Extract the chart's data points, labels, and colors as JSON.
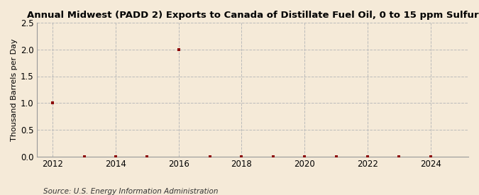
{
  "title": "Annual Midwest (PADD 2) Exports to Canada of Distillate Fuel Oil, 0 to 15 ppm Sulfur",
  "ylabel": "Thousand Barrels per Day",
  "source": "Source: U.S. Energy Information Administration",
  "background_color": "#f5ead8",
  "years": [
    2012,
    2013,
    2014,
    2015,
    2016,
    2017,
    2018,
    2019,
    2020,
    2021,
    2022,
    2023,
    2024
  ],
  "values": [
    1.0,
    0.0,
    0.0,
    0.0,
    2.0,
    0.0,
    0.0,
    0.0,
    0.0,
    0.0,
    0.0,
    0.0,
    0.0
  ],
  "point_color": "#8b0000",
  "point_size": 10,
  "xlim": [
    2011.5,
    2025.2
  ],
  "ylim": [
    0.0,
    2.5
  ],
  "yticks": [
    0.0,
    0.5,
    1.0,
    1.5,
    2.0,
    2.5
  ],
  "xticks": [
    2012,
    2014,
    2016,
    2018,
    2020,
    2022,
    2024
  ],
  "grid_color": "#bbbbbb",
  "title_fontsize": 9.5,
  "label_fontsize": 8,
  "tick_fontsize": 8.5,
  "source_fontsize": 7.5
}
